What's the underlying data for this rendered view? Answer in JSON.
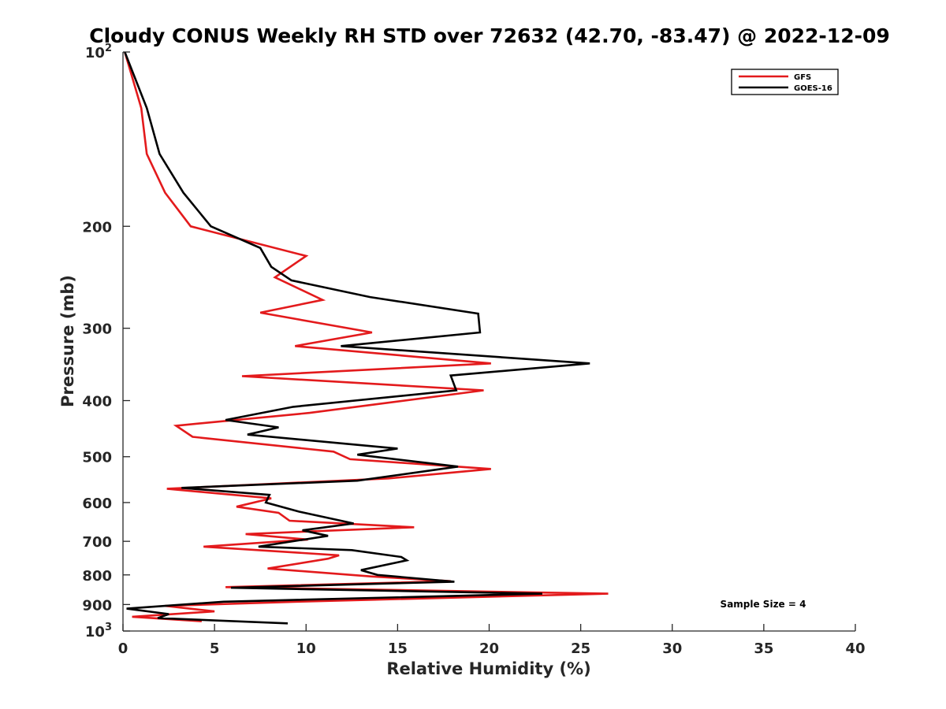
{
  "chart_data": {
    "type": "line",
    "title": "Cloudy CONUS Weekly RH STD over 72632 (42.70, -83.47) @ 2022-12-09",
    "xlabel": "Relative Humidity (%)",
    "ylabel": "Pressure (mb)",
    "xlim": [
      0,
      40
    ],
    "ylim": [
      100,
      1000
    ],
    "y_scale": "log",
    "y_reversed": true,
    "grid": false,
    "legend_position": "top-right",
    "x_ticks": [
      "0",
      "5",
      "10",
      "15",
      "20",
      "25",
      "30",
      "35",
      "40"
    ],
    "y_ticks": [
      {
        "value": 100,
        "label": "10",
        "sup": "2"
      },
      {
        "value": 200,
        "label": "200",
        "sup": ""
      },
      {
        "value": 300,
        "label": "300",
        "sup": ""
      },
      {
        "value": 400,
        "label": "400",
        "sup": ""
      },
      {
        "value": 500,
        "label": "500",
        "sup": ""
      },
      {
        "value": 600,
        "label": "600",
        "sup": ""
      },
      {
        "value": 700,
        "label": "700",
        "sup": ""
      },
      {
        "value": 800,
        "label": "800",
        "sup": ""
      },
      {
        "value": 900,
        "label": "900",
        "sup": ""
      },
      {
        "value": 1000,
        "label": "10",
        "sup": "3"
      }
    ],
    "series": [
      {
        "name": "GFS",
        "color": "#e31a1c",
        "points": [
          [
            0.1,
            100
          ],
          [
            1.0,
            125
          ],
          [
            1.3,
            150
          ],
          [
            2.3,
            175
          ],
          [
            3.7,
            200
          ],
          [
            10.0,
            225
          ],
          [
            8.3,
            245
          ],
          [
            10.9,
            268
          ],
          [
            7.5,
            282
          ],
          [
            13.6,
            305
          ],
          [
            9.4,
            322
          ],
          [
            20.1,
            345
          ],
          [
            6.5,
            363
          ],
          [
            19.7,
            384
          ],
          [
            10.2,
            420
          ],
          [
            2.9,
            442
          ],
          [
            3.8,
            462
          ],
          [
            11.5,
            490
          ],
          [
            12.4,
            505
          ],
          [
            20.1,
            525
          ],
          [
            14.5,
            545
          ],
          [
            2.4,
            568
          ],
          [
            8.1,
            590
          ],
          [
            6.2,
            610
          ],
          [
            8.5,
            625
          ],
          [
            9.1,
            645
          ],
          [
            15.9,
            662
          ],
          [
            6.7,
            680
          ],
          [
            10.1,
            695
          ],
          [
            4.4,
            715
          ],
          [
            11.8,
            740
          ],
          [
            11.2,
            750
          ],
          [
            7.9,
            780
          ],
          [
            13.6,
            805
          ],
          [
            17.9,
            820
          ],
          [
            5.6,
            840
          ],
          [
            26.5,
            862
          ],
          [
            9.5,
            890
          ],
          [
            2.3,
            905
          ],
          [
            5.0,
            925
          ],
          [
            0.5,
            945
          ],
          [
            4.3,
            962
          ]
        ]
      },
      {
        "name": "GOES-16",
        "color": "#000000",
        "points": [
          [
            0.1,
            100
          ],
          [
            1.3,
            125
          ],
          [
            2.0,
            150
          ],
          [
            3.3,
            175
          ],
          [
            4.8,
            200
          ],
          [
            7.5,
            218
          ],
          [
            8.1,
            235
          ],
          [
            9.2,
            248
          ],
          [
            13.5,
            265
          ],
          [
            19.4,
            283
          ],
          [
            19.5,
            305
          ],
          [
            11.9,
            322
          ],
          [
            25.5,
            345
          ],
          [
            17.9,
            362
          ],
          [
            18.2,
            384
          ],
          [
            9.3,
            410
          ],
          [
            5.6,
            432
          ],
          [
            8.5,
            445
          ],
          [
            6.8,
            458
          ],
          [
            15.0,
            484
          ],
          [
            12.8,
            496
          ],
          [
            18.3,
            520
          ],
          [
            12.8,
            550
          ],
          [
            3.2,
            566
          ],
          [
            8.0,
            582
          ],
          [
            7.8,
            600
          ],
          [
            9.6,
            622
          ],
          [
            12.6,
            652
          ],
          [
            9.8,
            670
          ],
          [
            11.2,
            685
          ],
          [
            7.4,
            715
          ],
          [
            12.5,
            725
          ],
          [
            15.2,
            745
          ],
          [
            15.5,
            755
          ],
          [
            13.0,
            785
          ],
          [
            13.9,
            800
          ],
          [
            18.1,
            822
          ],
          [
            5.9,
            842
          ],
          [
            22.9,
            862
          ],
          [
            5.5,
            890
          ],
          [
            0.2,
            915
          ],
          [
            2.5,
            935
          ],
          [
            1.9,
            950
          ],
          [
            9.0,
            970
          ]
        ]
      }
    ],
    "annotations": [
      "Sample Size = 4"
    ]
  }
}
